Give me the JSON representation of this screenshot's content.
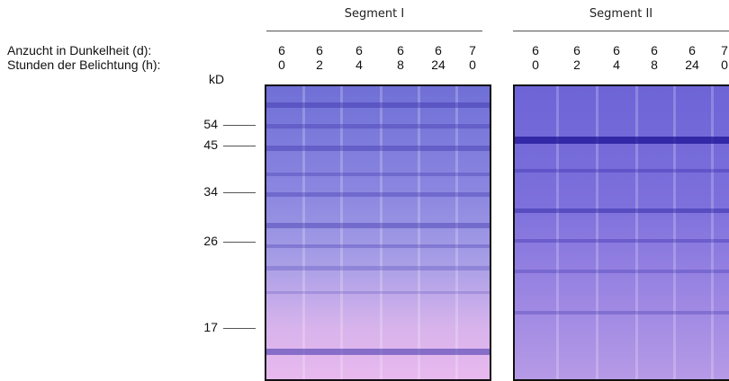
{
  "row_labels": {
    "dark": "Anzucht in Dunkelheit (d):",
    "light": "Stunden der Belichtung (h):"
  },
  "kd_label": "kD",
  "markers": [
    "54",
    "45",
    "34",
    "26",
    "17"
  ],
  "segments": [
    {
      "title": "Segment I",
      "lanes": [
        {
          "d": "6",
          "h": "0"
        },
        {
          "d": "6",
          "h": "2"
        },
        {
          "d": "6",
          "h": "4"
        },
        {
          "d": "6",
          "h": "8"
        },
        {
          "d": "6",
          "h": "24"
        },
        {
          "d": "7",
          "h": "0"
        }
      ]
    },
    {
      "title": "Segment II",
      "lanes": [
        {
          "d": "6",
          "h": "0"
        },
        {
          "d": "6",
          "h": "2"
        },
        {
          "d": "6",
          "h": "4"
        },
        {
          "d": "6",
          "h": "8"
        },
        {
          "d": "6",
          "h": "24"
        },
        {
          "d": "7",
          "h": "0"
        }
      ]
    }
  ]
}
